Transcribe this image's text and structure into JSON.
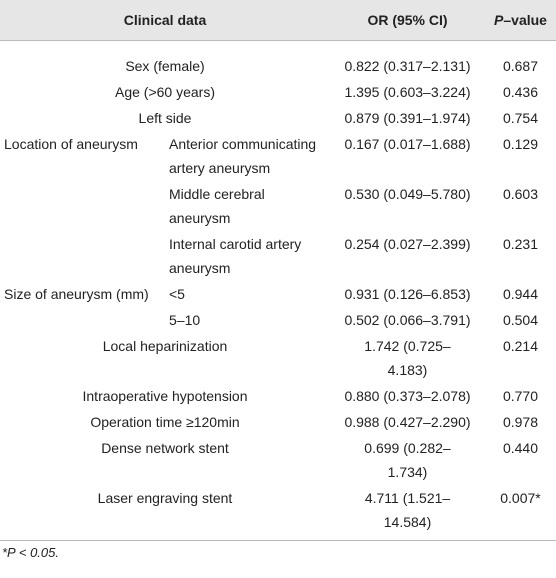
{
  "table": {
    "header": [
      "Clinical data",
      "OR (95% CI)",
      "P–value"
    ],
    "rows": [
      {
        "label": "Sex (female)",
        "or": "0.822 (0.317–2.131)",
        "p": "0.687"
      },
      {
        "label": "Age (>60 years)",
        "or": "1.395 (0.603–3.224)",
        "p": "0.436"
      },
      {
        "label": "Left side",
        "or": "0.879 (0.391–1.974)",
        "p": "0.754"
      },
      {
        "group": "Location of aneurysm",
        "sublabel": "Anterior communicating artery aneurysm",
        "or": "0.167 (0.017–1.688)",
        "p": "0.129"
      },
      {
        "sublabel": "Middle cerebral aneurysm",
        "or": "0.530 (0.049–5.780)",
        "p": "0.603"
      },
      {
        "sublabel": "Internal carotid artery aneurysm",
        "or": "0.254 (0.027–2.399)",
        "p": "0.231"
      },
      {
        "group": "Size of aneurysm (mm)",
        "sublabel": "<5",
        "or": "0.931 (0.126–6.853)",
        "p": "0.944"
      },
      {
        "sublabel": "5–10",
        "or": "0.502 (0.066–3.791)",
        "p": "0.504"
      },
      {
        "label": "Local heparinization",
        "or": "1.742 (0.725–4.183)",
        "p": "0.214"
      },
      {
        "label": "Intraoperative hypotension",
        "or": "0.880 (0.373–2.078)",
        "p": "0.770"
      },
      {
        "label": "Operation time ≥120min",
        "or": "0.988 (0.427–2.290)",
        "p": "0.978"
      },
      {
        "label": "Dense network stent",
        "or": "0.699 (0.282–1.734)",
        "p": "0.440"
      },
      {
        "label": "Laser engraving stent",
        "or": "4.711 (1.521–14.584)",
        "p": "0.007*"
      }
    ],
    "footnote": "*P < 0.05."
  }
}
